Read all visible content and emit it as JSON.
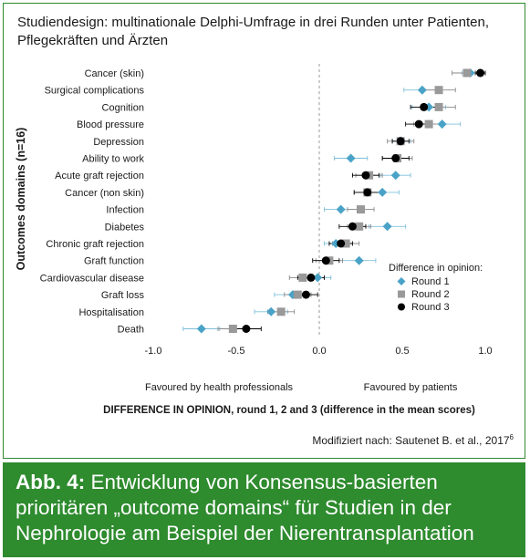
{
  "header": {
    "title": "Studiendesign: multinationale Delphi-Umfrage in drei Runden unter Patienten, Pflegekräften und Ärzten"
  },
  "chart_data": {
    "type": "scatter",
    "ylabel": "Outcomes domains (n=16)",
    "xlabel": "DIFFERENCE IN OPINION, round 1, 2 and 3 (difference in the mean scores)",
    "xlim": [
      -1.0,
      1.0
    ],
    "xticks": [
      "-1.0",
      "-0.5",
      "0.0",
      "0.5",
      "1.0"
    ],
    "xtick_values": [
      -1.0,
      -0.5,
      0.0,
      0.5,
      1.0
    ],
    "side_label_left": "Favoured by health professionals",
    "side_label_right": "Favoured by patients",
    "categories": [
      "Cancer (skin)",
      "Surgical complications",
      "Cognition",
      "Blood pressure",
      "Depression",
      "Ability to work",
      "Acute graft rejection",
      "Cancer (non skin)",
      "Infection",
      "Diabetes",
      "Chronic graft rejection",
      "Graft function",
      "Cardiovascular disease",
      "Graft loss",
      "Hospitalisation",
      "Death"
    ],
    "legend": {
      "title": "Difference in opinion:",
      "position": "right"
    },
    "series": [
      {
        "name": "Round 1",
        "marker": "diamond",
        "color": "#4aa3c7",
        "values": [
          0.91,
          0.62,
          0.66,
          0.74,
          0.49,
          0.19,
          0.46,
          0.38,
          0.13,
          0.41,
          0.1,
          0.24,
          -0.01,
          -0.16,
          -0.29,
          -0.71
        ],
        "ci": [
          [
            0.86,
            0.97
          ],
          [
            0.51,
            0.73
          ],
          [
            0.56,
            0.76
          ],
          [
            0.64,
            0.85
          ],
          [
            0.44,
            0.55
          ],
          [
            0.09,
            0.29
          ],
          [
            0.37,
            0.55
          ],
          [
            0.28,
            0.48
          ],
          [
            0.03,
            0.23
          ],
          [
            0.3,
            0.52
          ],
          [
            0.03,
            0.17
          ],
          [
            0.14,
            0.34
          ],
          [
            -0.09,
            0.07
          ],
          [
            -0.27,
            -0.05
          ],
          [
            -0.39,
            -0.19
          ],
          [
            -0.82,
            -0.6
          ]
        ]
      },
      {
        "name": "Round 2",
        "marker": "square",
        "color": "#999999",
        "values": [
          0.89,
          0.72,
          0.72,
          0.66,
          0.49,
          0.47,
          0.3,
          0.29,
          0.25,
          0.24,
          0.16,
          0.06,
          -0.1,
          -0.13,
          -0.23,
          -0.52
        ],
        "ci": [
          [
            0.8,
            0.97
          ],
          [
            0.62,
            0.82
          ],
          [
            0.62,
            0.82
          ],
          [
            0.57,
            0.75
          ],
          [
            0.41,
            0.57
          ],
          [
            0.38,
            0.56
          ],
          [
            0.22,
            0.38
          ],
          [
            0.21,
            0.37
          ],
          [
            0.17,
            0.33
          ],
          [
            0.17,
            0.31
          ],
          [
            0.08,
            0.24
          ],
          [
            -0.02,
            0.14
          ],
          [
            -0.18,
            -0.02
          ],
          [
            -0.21,
            -0.05
          ],
          [
            -0.31,
            -0.15
          ],
          [
            -0.61,
            -0.43
          ]
        ]
      },
      {
        "name": "Round 3",
        "marker": "circle",
        "color": "#000000",
        "values": [
          0.97,
          null,
          0.63,
          0.6,
          0.49,
          0.46,
          0.28,
          0.29,
          null,
          0.2,
          0.13,
          0.04,
          -0.05,
          -0.08,
          null,
          -0.44
        ],
        "ci": [
          [
            0.94,
            1.0
          ],
          null,
          [
            0.55,
            0.71
          ],
          [
            0.52,
            0.68
          ],
          [
            0.44,
            0.54
          ],
          [
            0.38,
            0.54
          ],
          [
            0.2,
            0.36
          ],
          [
            0.21,
            0.37
          ],
          null,
          [
            0.12,
            0.28
          ],
          [
            0.06,
            0.2
          ],
          [
            -0.04,
            0.12
          ],
          [
            -0.13,
            0.03
          ],
          [
            -0.15,
            -0.01
          ],
          null,
          [
            -0.53,
            -0.35
          ]
        ]
      }
    ]
  },
  "source": "Modifiziert nach: Sautenet B. et al., 2017",
  "source_ref": "6",
  "caption": {
    "label": "Abb. 4:",
    "text": "Entwicklung von Konsensus-basierten prioritären „outcome domains“ für Studien in der Nephrologie am Beispiel der Nierentransplantation"
  }
}
